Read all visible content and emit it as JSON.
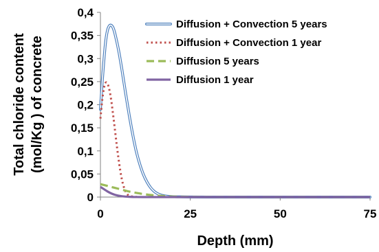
{
  "chart_data": {
    "type": "line",
    "title": "",
    "xlabel": "Depth (mm)",
    "ylabel_lines": [
      "Total chloride content",
      "(mol/Kg ) of concrete"
    ],
    "xlim": [
      0,
      75
    ],
    "ylim": [
      0,
      0.4
    ],
    "x_ticks": [
      0,
      25,
      50,
      75
    ],
    "x_tick_labels": [
      "0",
      "25",
      "50",
      "75"
    ],
    "y_ticks": [
      0,
      0.05,
      0.1,
      0.15,
      0.2,
      0.25,
      0.3,
      0.35,
      0.4
    ],
    "y_tick_labels": [
      "0",
      "0,05",
      "0,1",
      "0,15",
      "0,2",
      "0,25",
      "0,3",
      "0,35",
      "0,4"
    ],
    "grid": false,
    "legend_position": "top-right",
    "series": [
      {
        "name": "Diffusion + Convection 5 years",
        "color": "#4f81bd",
        "style": "double",
        "x": [
          0,
          0.5,
          1,
          1.5,
          2,
          2.5,
          3,
          3.5,
          4,
          5,
          6,
          7,
          8,
          9,
          10,
          11,
          12,
          13,
          14,
          15,
          16,
          17,
          18,
          19,
          20,
          22,
          25,
          30,
          40,
          50,
          60,
          75
        ],
        "y": [
          0.19,
          0.25,
          0.3,
          0.34,
          0.362,
          0.371,
          0.372,
          0.367,
          0.355,
          0.32,
          0.275,
          0.225,
          0.178,
          0.135,
          0.098,
          0.07,
          0.048,
          0.032,
          0.02,
          0.012,
          0.007,
          0.004,
          0.0025,
          0.0015,
          0.001,
          0.0005,
          0.0002,
          0,
          0,
          0,
          0,
          0
        ]
      },
      {
        "name": "Diffusion + Convection 1 year",
        "color": "#c0504d",
        "style": "dotted",
        "x": [
          0,
          0.5,
          1,
          1.5,
          2,
          2.5,
          3,
          3.5,
          4,
          4.5,
          5,
          5.5,
          6,
          6.5,
          7,
          7.5,
          8,
          9,
          10,
          12,
          15,
          20,
          30,
          50,
          75
        ],
        "y": [
          0.17,
          0.21,
          0.237,
          0.248,
          0.245,
          0.232,
          0.21,
          0.18,
          0.148,
          0.115,
          0.085,
          0.058,
          0.037,
          0.022,
          0.012,
          0.006,
          0.003,
          0.001,
          0.0003,
          0,
          0,
          0,
          0,
          0,
          0
        ]
      },
      {
        "name": "Diffusion 5 years",
        "color": "#9bbb59",
        "style": "dashed",
        "x": [
          0,
          2,
          4,
          6,
          8,
          10,
          12,
          14,
          16,
          18,
          20,
          25,
          30,
          40,
          50,
          60,
          75
        ],
        "y": [
          0.028,
          0.024,
          0.02,
          0.016,
          0.012,
          0.009,
          0.0065,
          0.0045,
          0.003,
          0.002,
          0.0012,
          0.0004,
          0.0001,
          0,
          0,
          0,
          0
        ]
      },
      {
        "name": "Diffusion 1 year",
        "color": "#8064a2",
        "style": "solid",
        "x": [
          0,
          1,
          2,
          3,
          4,
          5,
          6,
          7,
          8,
          9,
          10,
          12,
          15,
          20,
          30,
          50,
          75
        ],
        "y": [
          0.022,
          0.017,
          0.012,
          0.008,
          0.005,
          0.003,
          0.0018,
          0.001,
          0.0005,
          0.0002,
          0.0001,
          0,
          0,
          0,
          0,
          0,
          0
        ]
      }
    ]
  }
}
